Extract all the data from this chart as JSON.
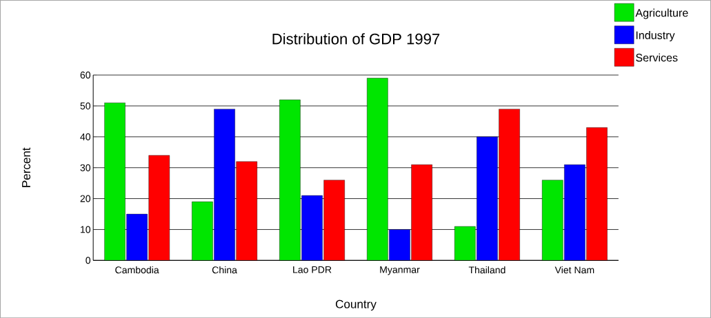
{
  "chart_data": {
    "type": "bar",
    "title": "Distribution of GDP 1997",
    "xlabel": "Country",
    "ylabel": "Percent",
    "categories": [
      "Cambodia",
      "China",
      "Lao PDR",
      "Myanmar",
      "Thailand",
      "Viet Nam"
    ],
    "series": [
      {
        "name": "Agriculture",
        "color": "#00e600",
        "values": [
          51,
          19,
          52,
          59,
          11,
          26
        ]
      },
      {
        "name": "Industry",
        "color": "#0000ff",
        "values": [
          15,
          49,
          21,
          10,
          40,
          31
        ]
      },
      {
        "name": "Services",
        "color": "#ff0000",
        "values": [
          34,
          32,
          26,
          31,
          49,
          43
        ]
      }
    ],
    "ylim": [
      0,
      60
    ],
    "yticks": [
      0,
      10,
      20,
      30,
      40,
      50,
      60
    ],
    "grid": "y",
    "legend": "top right"
  }
}
